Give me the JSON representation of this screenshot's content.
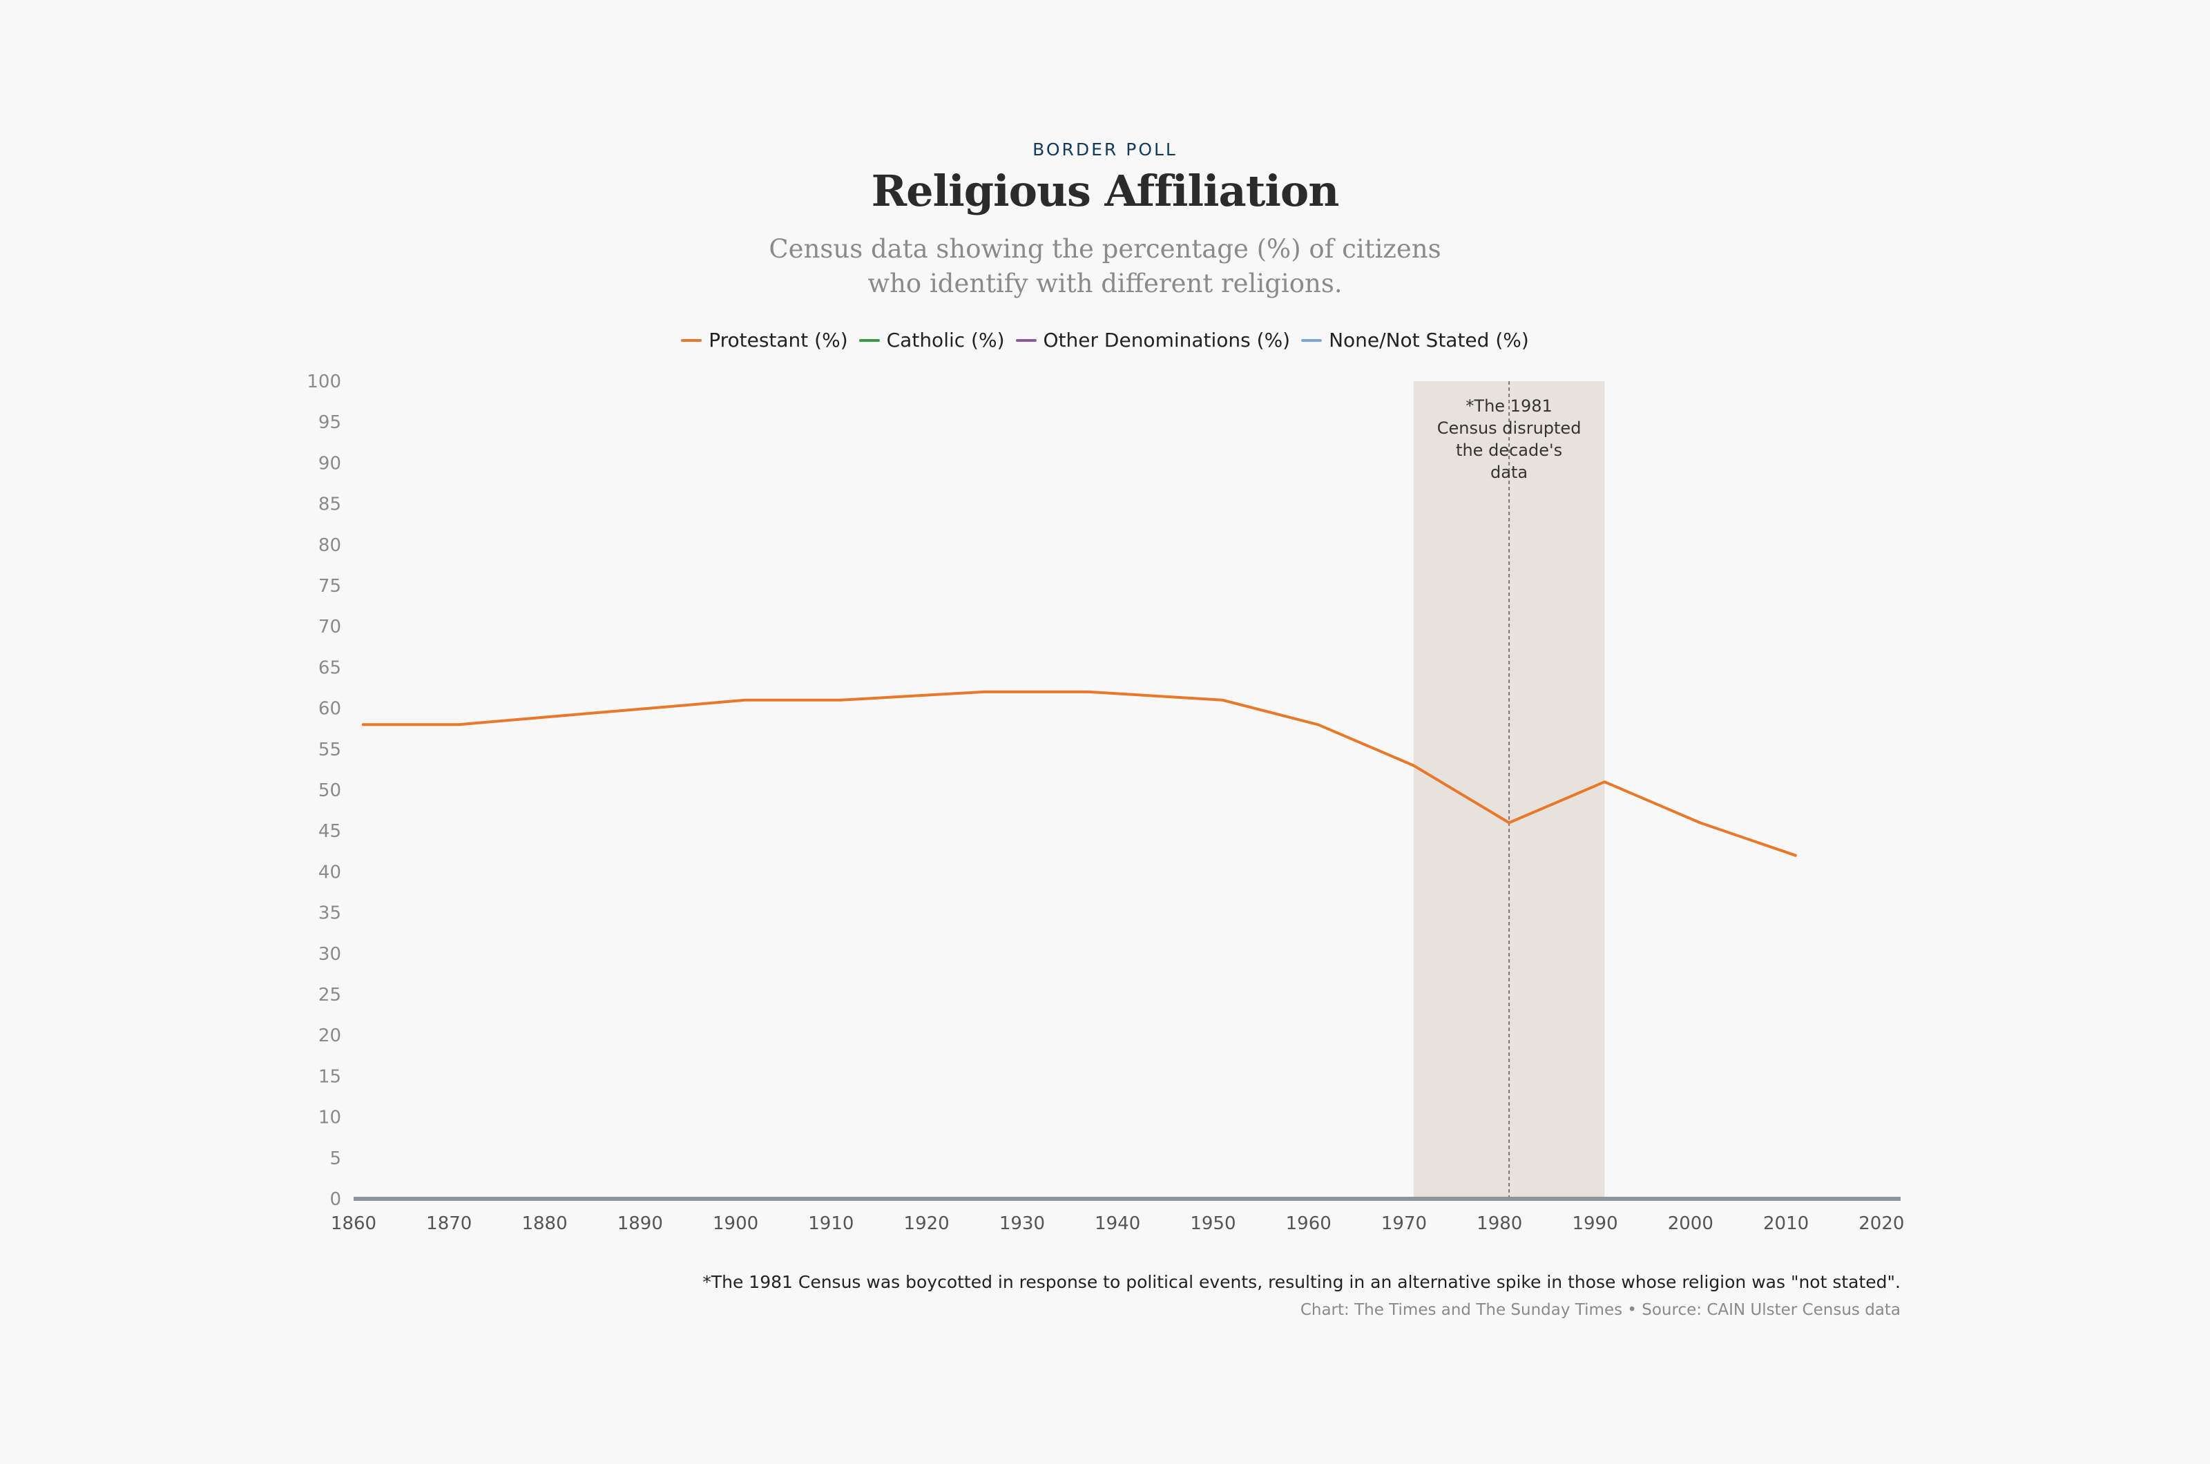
{
  "header": {
    "kicker": "BORDER POLL",
    "title": "Religious Affiliation",
    "subtitle_line1": "Census data showing the percentage (%) of citizens",
    "subtitle_line2": "who identify with different religions."
  },
  "legend": [
    {
      "label": "Protestant (%)",
      "color": "#e8782a"
    },
    {
      "label": "Catholic (%)",
      "color": "#3a9a44"
    },
    {
      "label": "Other Denominations (%)",
      "color": "#8a5a9e"
    },
    {
      "label": "None/Not Stated (%)",
      "color": "#7aa8d8"
    }
  ],
  "annotation": {
    "lines": [
      "*The 1981",
      "Census disrupted",
      "the decade's",
      "data"
    ]
  },
  "footer": {
    "footnote": "*The 1981 Census was boycotted in response to political events, resulting in an alternative spike in those whose religion was \"not stated\".",
    "credit": "Chart: The Times and The Sunday Times • Source: CAIN Ulster Census data"
  },
  "chart_data": {
    "type": "line",
    "xlim": [
      1860,
      2022
    ],
    "ylim": [
      0,
      100
    ],
    "x_ticks": [
      1860,
      1870,
      1880,
      1890,
      1900,
      1910,
      1920,
      1930,
      1940,
      1950,
      1960,
      1970,
      1980,
      1990,
      2000,
      2010,
      2020
    ],
    "y_ticks": [
      0,
      5,
      10,
      15,
      20,
      25,
      30,
      35,
      40,
      45,
      50,
      55,
      60,
      65,
      70,
      75,
      80,
      85,
      90,
      95,
      100
    ],
    "grid": false,
    "legend_position": "top-center",
    "highlight_band": {
      "x_start": 1971,
      "x_end": 1991,
      "marker_x": 1981
    },
    "series": [
      {
        "name": "Protestant (%)",
        "color": "#e8782a",
        "x": [
          1861,
          1871,
          1881,
          1891,
          1901,
          1911,
          1926,
          1937,
          1951,
          1961,
          1971,
          1981,
          1991,
          2001,
          2011
        ],
        "values": [
          58,
          58,
          59,
          60,
          61,
          61,
          62,
          62,
          61,
          58,
          53,
          46,
          51,
          46,
          42
        ]
      },
      {
        "name": "Catholic (%)",
        "color": "#3a9a44",
        "x": [],
        "values": []
      },
      {
        "name": "Other Denominations (%)",
        "color": "#8a5a9e",
        "x": [],
        "values": []
      },
      {
        "name": "None/Not Stated (%)",
        "color": "#7aa8d8",
        "x": [],
        "values": []
      }
    ]
  }
}
